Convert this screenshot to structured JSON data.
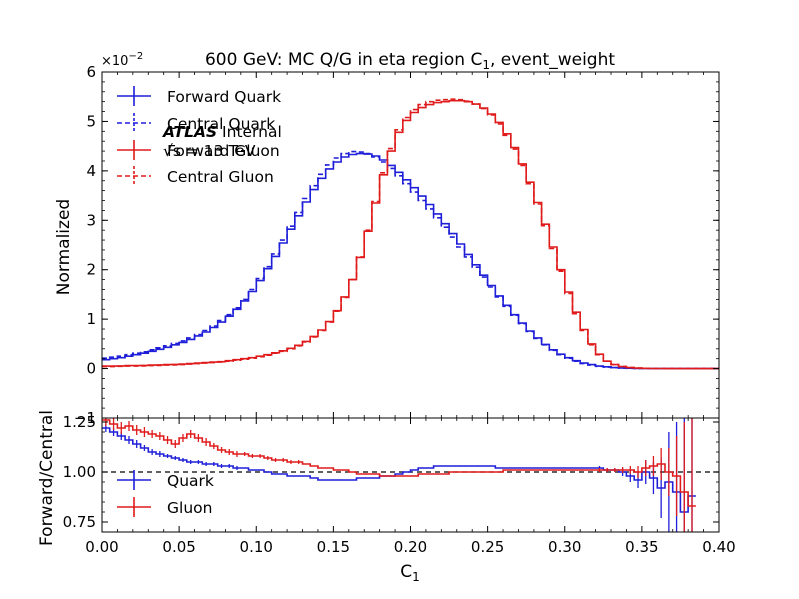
{
  "chart_data": [
    {
      "type": "line",
      "panel": "main",
      "title": "600 GeV: MC Q/G in eta region C",
      "title_subscript": "1",
      "title_suffix": ", event_weight",
      "ylabel": "Normalized",
      "y_offset_base": "×10",
      "y_offset_exp": "−2",
      "xlim": [
        0.0,
        0.4
      ],
      "ylim": [
        -1,
        6
      ],
      "yticks": [
        "−1",
        "0",
        "1",
        "2",
        "3",
        "4",
        "5",
        "6"
      ],
      "grid": false,
      "legend_position": "upper-left",
      "atlas_label": "ATLAS",
      "atlas_suffix": " Internal",
      "energy_label": "√s = 13 TeV",
      "x": [
        0.0025,
        0.0075,
        0.0125,
        0.0175,
        0.0225,
        0.0275,
        0.0325,
        0.0375,
        0.0425,
        0.0475,
        0.0525,
        0.0575,
        0.0625,
        0.0675,
        0.0725,
        0.0775,
        0.0825,
        0.0875,
        0.0925,
        0.0975,
        0.1025,
        0.1075,
        0.1125,
        0.1175,
        0.1225,
        0.1275,
        0.1325,
        0.1375,
        0.1425,
        0.1475,
        0.1525,
        0.1575,
        0.1625,
        0.1675,
        0.1725,
        0.1775,
        0.1825,
        0.1875,
        0.1925,
        0.1975,
        0.2025,
        0.2075,
        0.2125,
        0.2175,
        0.2225,
        0.2275,
        0.2325,
        0.2375,
        0.2425,
        0.2475,
        0.2525,
        0.2575,
        0.2625,
        0.2675,
        0.2725,
        0.2775,
        0.2825,
        0.2875,
        0.2925,
        0.2975,
        0.3025,
        0.3075,
        0.3125,
        0.3175,
        0.3225,
        0.3275,
        0.3325,
        0.3375,
        0.3425,
        0.3475,
        0.3525,
        0.3575,
        0.3625,
        0.3675,
        0.3725,
        0.3775,
        0.3825,
        0.3875,
        0.3925,
        0.3975
      ],
      "series": [
        {
          "name": "Forward Quark",
          "color": "#1f1fd9",
          "dashed": false,
          "values": [
            0.18,
            0.2,
            0.22,
            0.25,
            0.28,
            0.31,
            0.35,
            0.39,
            0.43,
            0.48,
            0.53,
            0.59,
            0.66,
            0.74,
            0.83,
            0.94,
            1.06,
            1.2,
            1.37,
            1.56,
            1.78,
            2.02,
            2.27,
            2.54,
            2.82,
            3.09,
            3.37,
            3.62,
            3.85,
            4.04,
            4.18,
            4.28,
            4.33,
            4.35,
            4.34,
            4.3,
            4.22,
            4.11,
            3.97,
            3.82,
            3.66,
            3.49,
            3.32,
            3.13,
            2.93,
            2.73,
            2.52,
            2.31,
            2.1,
            1.89,
            1.68,
            1.47,
            1.28,
            1.09,
            0.92,
            0.76,
            0.62,
            0.49,
            0.38,
            0.29,
            0.22,
            0.16,
            0.11,
            0.08,
            0.05,
            0.035,
            0.02,
            0.012,
            0.007,
            0.004,
            0.002,
            0.001,
            0.001,
            0.0,
            0.0,
            0.0,
            0.0,
            0.0,
            0.0,
            0.0
          ]
        },
        {
          "name": "Central Quark",
          "color": "#1f1fd9",
          "dashed": true,
          "values": [
            0.21,
            0.23,
            0.25,
            0.28,
            0.31,
            0.34,
            0.38,
            0.42,
            0.46,
            0.51,
            0.56,
            0.62,
            0.69,
            0.77,
            0.86,
            0.97,
            1.09,
            1.23,
            1.4,
            1.6,
            1.82,
            2.06,
            2.32,
            2.6,
            2.88,
            3.16,
            3.44,
            3.7,
            3.93,
            4.12,
            4.26,
            4.35,
            4.39,
            4.38,
            4.35,
            4.28,
            4.18,
            4.05,
            3.9,
            3.74,
            3.57,
            3.4,
            3.23,
            3.05,
            2.86,
            2.66,
            2.46,
            2.26,
            2.05,
            1.85,
            1.65,
            1.45,
            1.26,
            1.08,
            0.91,
            0.75,
            0.61,
            0.48,
            0.37,
            0.28,
            0.21,
            0.15,
            0.1,
            0.07,
            0.045,
            0.03,
            0.018,
            0.01,
            0.006,
            0.003,
            0.002,
            0.001,
            0.0,
            0.0,
            0.0,
            0.0,
            0.0,
            0.0,
            0.0,
            0.0
          ]
        },
        {
          "name": "Forward Gluon",
          "color": "#e01b1b",
          "dashed": false,
          "values": [
            0.05,
            0.05,
            0.055,
            0.06,
            0.06,
            0.065,
            0.07,
            0.075,
            0.08,
            0.085,
            0.09,
            0.1,
            0.11,
            0.12,
            0.13,
            0.14,
            0.16,
            0.18,
            0.2,
            0.22,
            0.25,
            0.28,
            0.32,
            0.36,
            0.41,
            0.47,
            0.55,
            0.65,
            0.78,
            0.95,
            1.17,
            1.45,
            1.8,
            2.25,
            2.78,
            3.35,
            3.92,
            4.4,
            4.78,
            5.02,
            5.18,
            5.28,
            5.34,
            5.38,
            5.4,
            5.42,
            5.42,
            5.4,
            5.35,
            5.27,
            5.15,
            4.98,
            4.75,
            4.47,
            4.14,
            3.77,
            3.36,
            2.92,
            2.46,
            2.0,
            1.55,
            1.14,
            0.79,
            0.5,
            0.29,
            0.15,
            0.08,
            0.04,
            0.02,
            0.01,
            0.005,
            0.002,
            0.001,
            0.0,
            0.0,
            0.0,
            0.0,
            0.0,
            0.0,
            0.0
          ]
        },
        {
          "name": "Central Gluon",
          "color": "#e01b1b",
          "dashed": true,
          "values": [
            0.04,
            0.04,
            0.045,
            0.05,
            0.05,
            0.055,
            0.06,
            0.065,
            0.07,
            0.075,
            0.08,
            0.09,
            0.1,
            0.11,
            0.12,
            0.13,
            0.15,
            0.17,
            0.19,
            0.21,
            0.24,
            0.27,
            0.31,
            0.35,
            0.4,
            0.46,
            0.54,
            0.64,
            0.77,
            0.94,
            1.16,
            1.44,
            1.8,
            2.26,
            2.8,
            3.38,
            3.96,
            4.45,
            4.83,
            5.08,
            5.24,
            5.34,
            5.4,
            5.43,
            5.44,
            5.45,
            5.44,
            5.41,
            5.35,
            5.26,
            5.13,
            4.95,
            4.72,
            4.44,
            4.11,
            3.74,
            3.33,
            2.89,
            2.43,
            1.97,
            1.52,
            1.11,
            0.77,
            0.48,
            0.28,
            0.15,
            0.08,
            0.04,
            0.02,
            0.01,
            0.005,
            0.002,
            0.001,
            0.0,
            0.0,
            0.0,
            0.0,
            0.0,
            0.0,
            0.0
          ]
        }
      ]
    },
    {
      "type": "line",
      "panel": "ratio",
      "xlabel": "C",
      "xlabel_subscript": "1",
      "ylabel": "Forward/Central",
      "xlim": [
        0.0,
        0.4
      ],
      "ylim": [
        0.7,
        1.27
      ],
      "xticks": [
        "0.00",
        "0.05",
        "0.10",
        "0.15",
        "0.20",
        "0.25",
        "0.30",
        "0.35",
        "0.40"
      ],
      "yticks": [
        "0.75",
        "1.00",
        "1.25"
      ],
      "reference_line": 1.0,
      "grid": false,
      "legend_position": "lower-left",
      "x": [
        0.0025,
        0.0075,
        0.0125,
        0.0175,
        0.0225,
        0.0275,
        0.0325,
        0.0375,
        0.0425,
        0.0475,
        0.0525,
        0.0575,
        0.0625,
        0.0675,
        0.0725,
        0.0775,
        0.0825,
        0.0875,
        0.0925,
        0.0975,
        0.1025,
        0.1075,
        0.1125,
        0.1175,
        0.1225,
        0.1275,
        0.1325,
        0.1375,
        0.1425,
        0.1475,
        0.1525,
        0.1575,
        0.1625,
        0.1675,
        0.1725,
        0.1775,
        0.1825,
        0.1875,
        0.1925,
        0.1975,
        0.2025,
        0.2075,
        0.2125,
        0.2175,
        0.2225,
        0.2275,
        0.2325,
        0.2375,
        0.2425,
        0.2475,
        0.2525,
        0.2575,
        0.2625,
        0.2675,
        0.2725,
        0.2775,
        0.2825,
        0.2875,
        0.2925,
        0.2975,
        0.3025,
        0.3075,
        0.3125,
        0.3175,
        0.3225,
        0.3275,
        0.3325,
        0.3375,
        0.3425,
        0.3475,
        0.3525,
        0.3575,
        0.3625,
        0.3675,
        0.3725,
        0.3775,
        0.3825
      ],
      "series": [
        {
          "name": "Quark",
          "color": "#1f1fd9",
          "values": [
            1.22,
            1.2,
            1.18,
            1.16,
            1.14,
            1.12,
            1.1,
            1.09,
            1.08,
            1.07,
            1.06,
            1.05,
            1.05,
            1.04,
            1.04,
            1.03,
            1.03,
            1.02,
            1.02,
            1.01,
            1.01,
            1.0,
            0.99,
            0.99,
            0.98,
            0.98,
            0.98,
            0.97,
            0.96,
            0.96,
            0.96,
            0.96,
            0.96,
            0.97,
            0.97,
            0.97,
            0.98,
            0.98,
            0.99,
            1.0,
            1.01,
            1.02,
            1.02,
            1.03,
            1.03,
            1.03,
            1.03,
            1.03,
            1.03,
            1.03,
            1.03,
            1.02,
            1.02,
            1.02,
            1.02,
            1.02,
            1.02,
            1.02,
            1.02,
            1.02,
            1.02,
            1.02,
            1.02,
            1.02,
            1.02,
            1.01,
            1.01,
            1.0,
            0.98,
            0.96,
            1.0,
            0.97,
            0.92,
            0.95,
            0.9,
            0.8,
            0.88
          ],
          "errors": [
            0.02,
            0.02,
            0.02,
            0.02,
            0.02,
            0.015,
            0.015,
            0.015,
            0.01,
            0.01,
            0.01,
            0.01,
            0.01,
            0.01,
            0.01,
            0.01,
            0.01,
            0.01,
            0.005,
            0.005,
            0.005,
            0.005,
            0.005,
            0.005,
            0.005,
            0.005,
            0.005,
            0.005,
            0.005,
            0.005,
            0.005,
            0.005,
            0.005,
            0.005,
            0.005,
            0.005,
            0.005,
            0.005,
            0.005,
            0.005,
            0.005,
            0.005,
            0.005,
            0.005,
            0.005,
            0.005,
            0.005,
            0.005,
            0.005,
            0.005,
            0.005,
            0.005,
            0.005,
            0.005,
            0.005,
            0.005,
            0.005,
            0.005,
            0.005,
            0.005,
            0.005,
            0.005,
            0.005,
            0.005,
            0.01,
            0.01,
            0.01,
            0.02,
            0.03,
            0.04,
            0.06,
            0.08,
            0.15,
            0.25,
            0.35,
            0.5,
            0.6
          ]
        },
        {
          "name": "Gluon",
          "color": "#e01b1b",
          "values": [
            1.26,
            1.24,
            1.22,
            1.23,
            1.21,
            1.2,
            1.19,
            1.18,
            1.16,
            1.14,
            1.17,
            1.19,
            1.17,
            1.15,
            1.13,
            1.11,
            1.1,
            1.09,
            1.09,
            1.08,
            1.08,
            1.07,
            1.06,
            1.06,
            1.05,
            1.05,
            1.04,
            1.03,
            1.02,
            1.02,
            1.01,
            1.01,
            1.0,
            0.99,
            0.99,
            0.99,
            0.98,
            0.98,
            0.98,
            0.98,
            0.98,
            0.99,
            0.99,
            0.99,
            0.99,
            1.0,
            1.0,
            1.0,
            1.0,
            1.0,
            1.0,
            1.0,
            1.01,
            1.01,
            1.01,
            1.01,
            1.01,
            1.01,
            1.01,
            1.01,
            1.01,
            1.01,
            1.01,
            1.01,
            1.01,
            1.01,
            1.01,
            1.01,
            1.01,
            1.0,
            1.02,
            1.03,
            1.04,
            1.0,
            0.98,
            0.9,
            0.83
          ],
          "errors": [
            0.03,
            0.03,
            0.03,
            0.025,
            0.025,
            0.025,
            0.02,
            0.02,
            0.02,
            0.02,
            0.02,
            0.02,
            0.02,
            0.02,
            0.015,
            0.015,
            0.015,
            0.015,
            0.01,
            0.01,
            0.01,
            0.01,
            0.01,
            0.01,
            0.01,
            0.01,
            0.005,
            0.005,
            0.005,
            0.005,
            0.005,
            0.005,
            0.005,
            0.005,
            0.005,
            0.005,
            0.005,
            0.005,
            0.005,
            0.005,
            0.005,
            0.005,
            0.005,
            0.005,
            0.005,
            0.005,
            0.005,
            0.005,
            0.005,
            0.005,
            0.005,
            0.005,
            0.005,
            0.005,
            0.005,
            0.005,
            0.005,
            0.005,
            0.005,
            0.005,
            0.005,
            0.005,
            0.005,
            0.005,
            0.01,
            0.01,
            0.01,
            0.015,
            0.02,
            0.03,
            0.04,
            0.05,
            0.08,
            0.12,
            0.2,
            0.35,
            0.5
          ]
        }
      ]
    }
  ]
}
